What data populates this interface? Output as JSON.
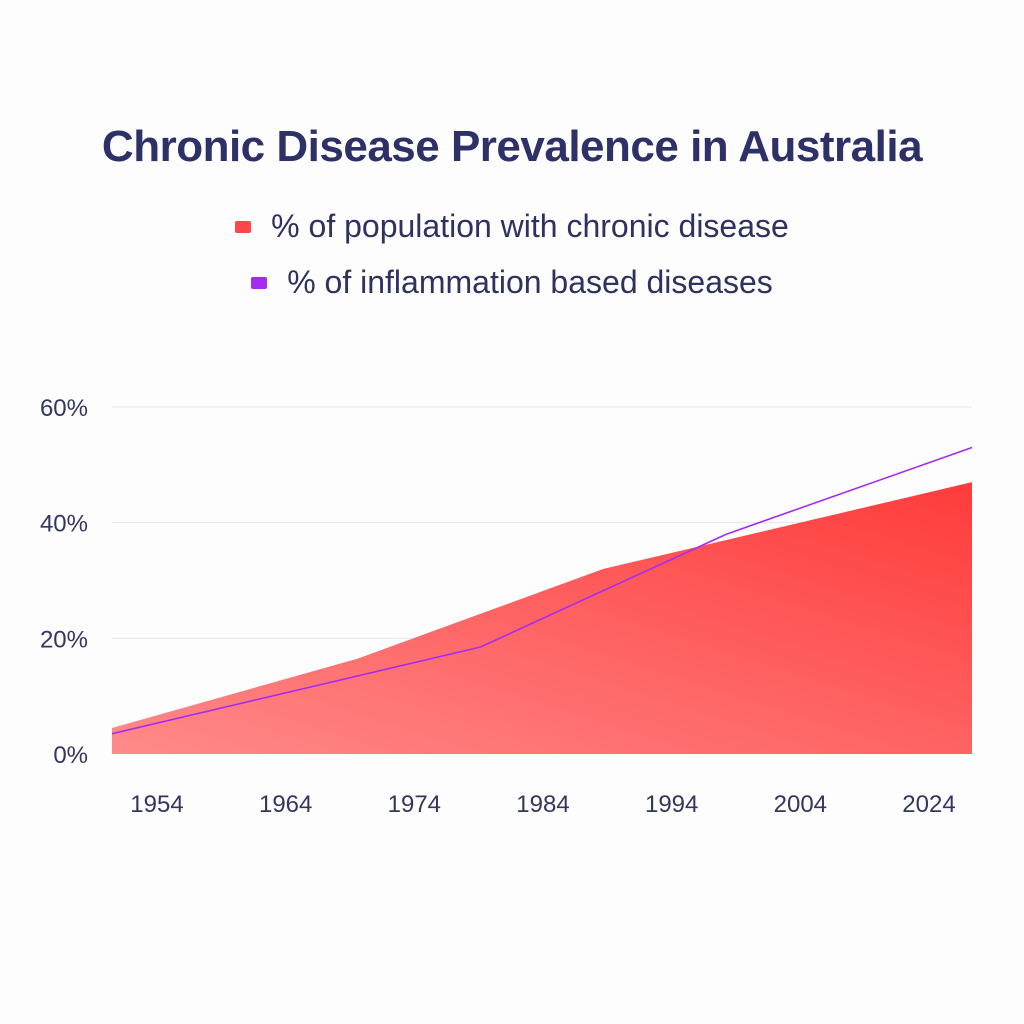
{
  "chart_data": {
    "type": "area",
    "title": "Chronic Disease Prevalence in Australia",
    "xlabel": "",
    "ylabel": "",
    "x_tick_labels": [
      "1954",
      "1964",
      "1974",
      "1984",
      "1994",
      "2004",
      "2024"
    ],
    "y_tick_labels": [
      "0%",
      "20%",
      "40%",
      "60%"
    ],
    "y_ticks": [
      0,
      20,
      40,
      60
    ],
    "ylim": [
      0,
      60
    ],
    "grid": true,
    "legend_position": "top-center",
    "series": [
      {
        "name": "% of population with chronic disease",
        "kind": "area",
        "color": "#ff4444",
        "points": [
          {
            "x": 1954,
            "y": 4.5
          },
          {
            "x": 1974,
            "y": 16.5
          },
          {
            "x": 1994,
            "y": 32
          },
          {
            "x": 2024,
            "y": 47
          }
        ]
      },
      {
        "name": "% of inflammation based diseases",
        "kind": "line",
        "color": "#a62bf0",
        "points": [
          {
            "x": 1954,
            "y": 3.5
          },
          {
            "x": 1984,
            "y": 18.5
          },
          {
            "x": 2004,
            "y": 38
          },
          {
            "x": 2024,
            "y": 53
          }
        ]
      }
    ]
  }
}
